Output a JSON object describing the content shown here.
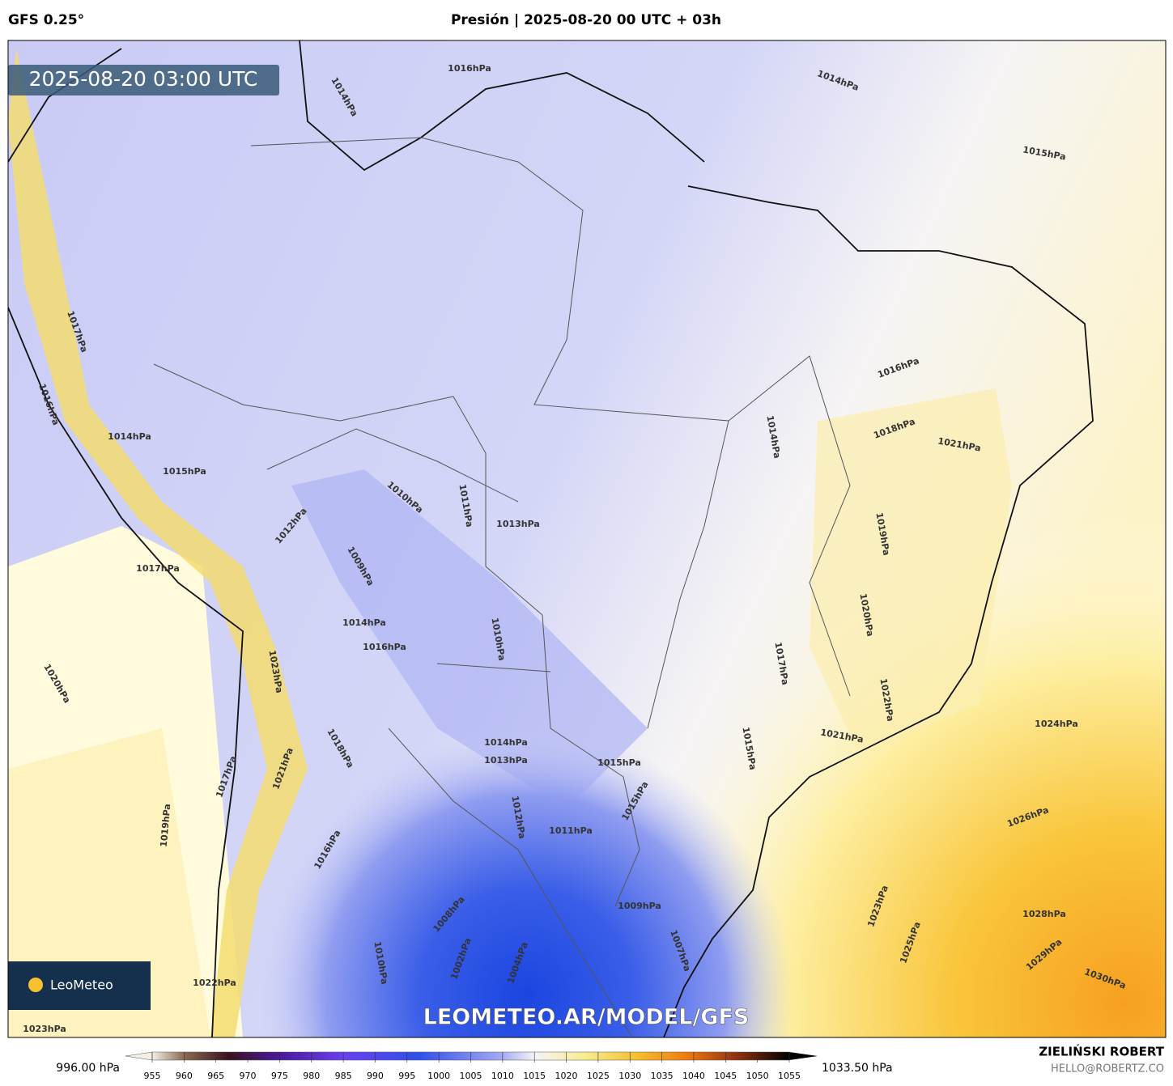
{
  "header": {
    "model": "GFS 0.25°",
    "title": "Presión | 2025-08-20 00 UTC + 03h"
  },
  "map": {
    "timestamp": "2025-08-20 03:00 UTC",
    "watermark": "LEOMETEO.AR/MODEL/GFS",
    "logo": "LeoMeteo",
    "isobar_labels": [
      "1014hPa",
      "1015hPa",
      "1016hPa",
      "1018hPa",
      "1021hPa",
      "1014hPa",
      "1019hPa",
      "1020hPa",
      "1017hPa",
      "1022hPa",
      "1021hPa",
      "1024hPa",
      "1015hPa",
      "1026hPa",
      "1023hPa",
      "1025hPa",
      "1028hPa",
      "1029hPa",
      "1030hPa",
      "1013hPa",
      "1011hPa",
      "1010hPa",
      "1012hPa",
      "1009hPa",
      "1010hPa",
      "1014hPa",
      "1016hPa",
      "1014hPa",
      "1013hPa",
      "1015hPa",
      "1015hPa",
      "1012hPa",
      "1011hPa",
      "1009hPa",
      "1008hPa",
      "1007hPa",
      "1010hPa",
      "1016hPa",
      "1018hPa",
      "1021hPa",
      "1017hPa",
      "1019hPa",
      "1020hPa",
      "1023hPa",
      "1017hPa",
      "1015hPa",
      "1014hPa",
      "1016hPa",
      "1017hPa",
      "1014hPa",
      "1016hPa",
      "1022hPa",
      "1023hPa",
      "1002hPa",
      "1004hPa"
    ]
  },
  "colorbar": {
    "min_label": "996.00 hPa",
    "max_label": "1033.50 hPa",
    "range": [
      955,
      1055
    ],
    "ticks": [
      955,
      960,
      965,
      970,
      975,
      980,
      985,
      990,
      995,
      1000,
      1005,
      1010,
      1015,
      1020,
      1025,
      1030,
      1035,
      1040,
      1045,
      1050,
      1055
    ]
  },
  "footer": {
    "author": "ZIELIŃSKI ROBERT",
    "email": "HELLO@ROBERTZ.CO"
  }
}
